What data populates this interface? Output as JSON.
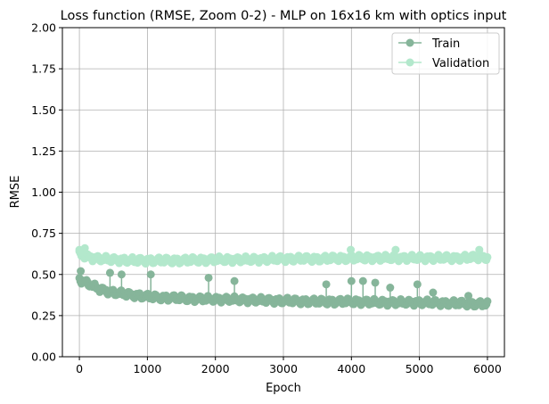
{
  "chart_data": {
    "type": "line",
    "title": "Loss function (RMSE, Zoom 0-2) - MLP on 16x16 km with optics input",
    "xlabel": "Epoch",
    "ylabel": "RMSE",
    "xlim": [
      -250,
      6250
    ],
    "ylim": [
      0,
      2
    ],
    "xticks": [
      "0",
      "1000",
      "2000",
      "3000",
      "4000",
      "5000",
      "6000"
    ],
    "yticks": [
      "0.00",
      "0.25",
      "0.50",
      "0.75",
      "1.00",
      "1.25",
      "1.50",
      "1.75",
      "2.00"
    ],
    "grid": true,
    "legend_position": "top-right",
    "series": [
      {
        "name": "Train",
        "color": "#86b59a",
        "x": [
          0,
          100,
          200,
          300,
          400,
          500,
          700,
          900,
          1000,
          1200,
          1500,
          1800,
          2000,
          2500,
          3000,
          3500,
          4000,
          4500,
          5000,
          5500,
          6000
        ],
        "values": [
          0.47,
          0.45,
          0.43,
          0.41,
          0.4,
          0.39,
          0.38,
          0.37,
          0.365,
          0.36,
          0.355,
          0.35,
          0.35,
          0.345,
          0.34,
          0.335,
          0.335,
          0.33,
          0.33,
          0.325,
          0.32
        ],
        "spikes": [
          {
            "x": 20,
            "y": 0.52
          },
          {
            "x": 450,
            "y": 0.51
          },
          {
            "x": 620,
            "y": 0.5
          },
          {
            "x": 1050,
            "y": 0.5
          },
          {
            "x": 1900,
            "y": 0.48
          },
          {
            "x": 2280,
            "y": 0.46
          },
          {
            "x": 3630,
            "y": 0.44
          },
          {
            "x": 4000,
            "y": 0.46
          },
          {
            "x": 4170,
            "y": 0.46
          },
          {
            "x": 4350,
            "y": 0.45
          },
          {
            "x": 4570,
            "y": 0.42
          },
          {
            "x": 4970,
            "y": 0.44
          },
          {
            "x": 5200,
            "y": 0.39
          },
          {
            "x": 5720,
            "y": 0.37
          }
        ]
      },
      {
        "name": "Validation",
        "color": "#b3e8cc",
        "x": [
          0,
          100,
          200,
          300,
          500,
          800,
          1000,
          1500,
          2000,
          2500,
          3000,
          3500,
          4000,
          4500,
          5000,
          5500,
          6000
        ],
        "values": [
          0.62,
          0.61,
          0.6,
          0.595,
          0.59,
          0.585,
          0.585,
          0.585,
          0.59,
          0.59,
          0.595,
          0.595,
          0.6,
          0.6,
          0.6,
          0.6,
          0.605
        ],
        "spikes": [
          {
            "x": 0,
            "y": 0.65
          },
          {
            "x": 80,
            "y": 0.66
          },
          {
            "x": 3990,
            "y": 0.65
          },
          {
            "x": 4650,
            "y": 0.65
          },
          {
            "x": 5880,
            "y": 0.65
          }
        ]
      }
    ]
  }
}
